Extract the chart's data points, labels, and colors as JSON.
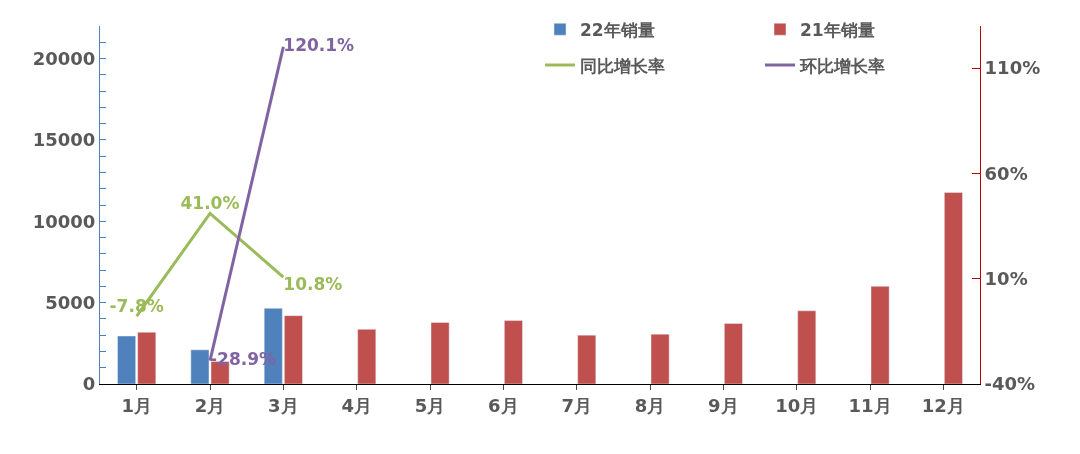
{
  "chart_data": {
    "type": "bar",
    "categories": [
      "1月",
      "2月",
      "3月",
      "4月",
      "5月",
      "6月",
      "7月",
      "8月",
      "9月",
      "10月",
      "11月",
      "12月"
    ],
    "series": [
      {
        "name": "22年销量",
        "color": "#4f81bd",
        "values": [
          2950,
          2100,
          4650,
          null,
          null,
          null,
          null,
          null,
          null,
          null,
          null,
          null
        ]
      },
      {
        "name": "21年销量",
        "color": "#c0504d",
        "values": [
          3180,
          1380,
          4200,
          3360,
          3780,
          3900,
          3000,
          3060,
          3720,
          4500,
          6000,
          11770
        ]
      },
      {
        "name": "同比增长率",
        "type": "line",
        "axis": "y2",
        "color": "#9bbb59",
        "values": [
          -7.8,
          41.0,
          10.8,
          null,
          null,
          null,
          null,
          null,
          null,
          null,
          null,
          null
        ],
        "value_labels": [
          "-7.8%",
          "41.0%",
          "10.8%",
          null,
          null,
          null,
          null,
          null,
          null,
          null,
          null,
          null
        ]
      },
      {
        "name": "环比增长率",
        "type": "line",
        "axis": "y2",
        "color": "#8064a2",
        "values": [
          null,
          -28.9,
          120.1,
          null,
          null,
          null,
          null,
          null,
          null,
          null,
          null,
          null
        ],
        "value_labels": [
          null,
          "-28.9%",
          "120.1%",
          null,
          null,
          null,
          null,
          null,
          null,
          null,
          null,
          null
        ]
      }
    ],
    "ylim": [
      0,
      22000
    ],
    "yticks": [
      0,
      {
        "value": 1000,
        "label": null
      },
      {
        "value": 2000,
        "label": null
      },
      {
        "value": 3000,
        "label": null
      },
      {
        "value": 4000,
        "label": null
      },
      5000,
      {
        "value": 6000,
        "label": null
      },
      {
        "value": 7000,
        "label": null
      },
      {
        "value": 8000,
        "label": null
      },
      {
        "value": 9000,
        "label": null
      },
      10000,
      {
        "value": 11000,
        "label": null
      },
      {
        "value": 12000,
        "label": null
      },
      {
        "value": 13000,
        "label": null
      },
      {
        "value": 14000,
        "label": null
      },
      15000,
      {
        "value": 16000,
        "label": null
      },
      {
        "value": 17000,
        "label": null
      },
      {
        "value": 18000,
        "label": null
      },
      {
        "value": 19000,
        "label": null
      },
      20000,
      {
        "value": 21000,
        "label": null
      }
    ],
    "y2lim": [
      -40,
      130
    ],
    "y2ticks": [
      {
        "value": -40,
        "label": "-40%"
      },
      {
        "value": 10,
        "label": "10%"
      },
      {
        "value": 60,
        "label": "60%"
      },
      {
        "value": 110,
        "label": "110%"
      }
    ],
    "legend": "top right",
    "marker": "none",
    "line_style": "solid"
  }
}
